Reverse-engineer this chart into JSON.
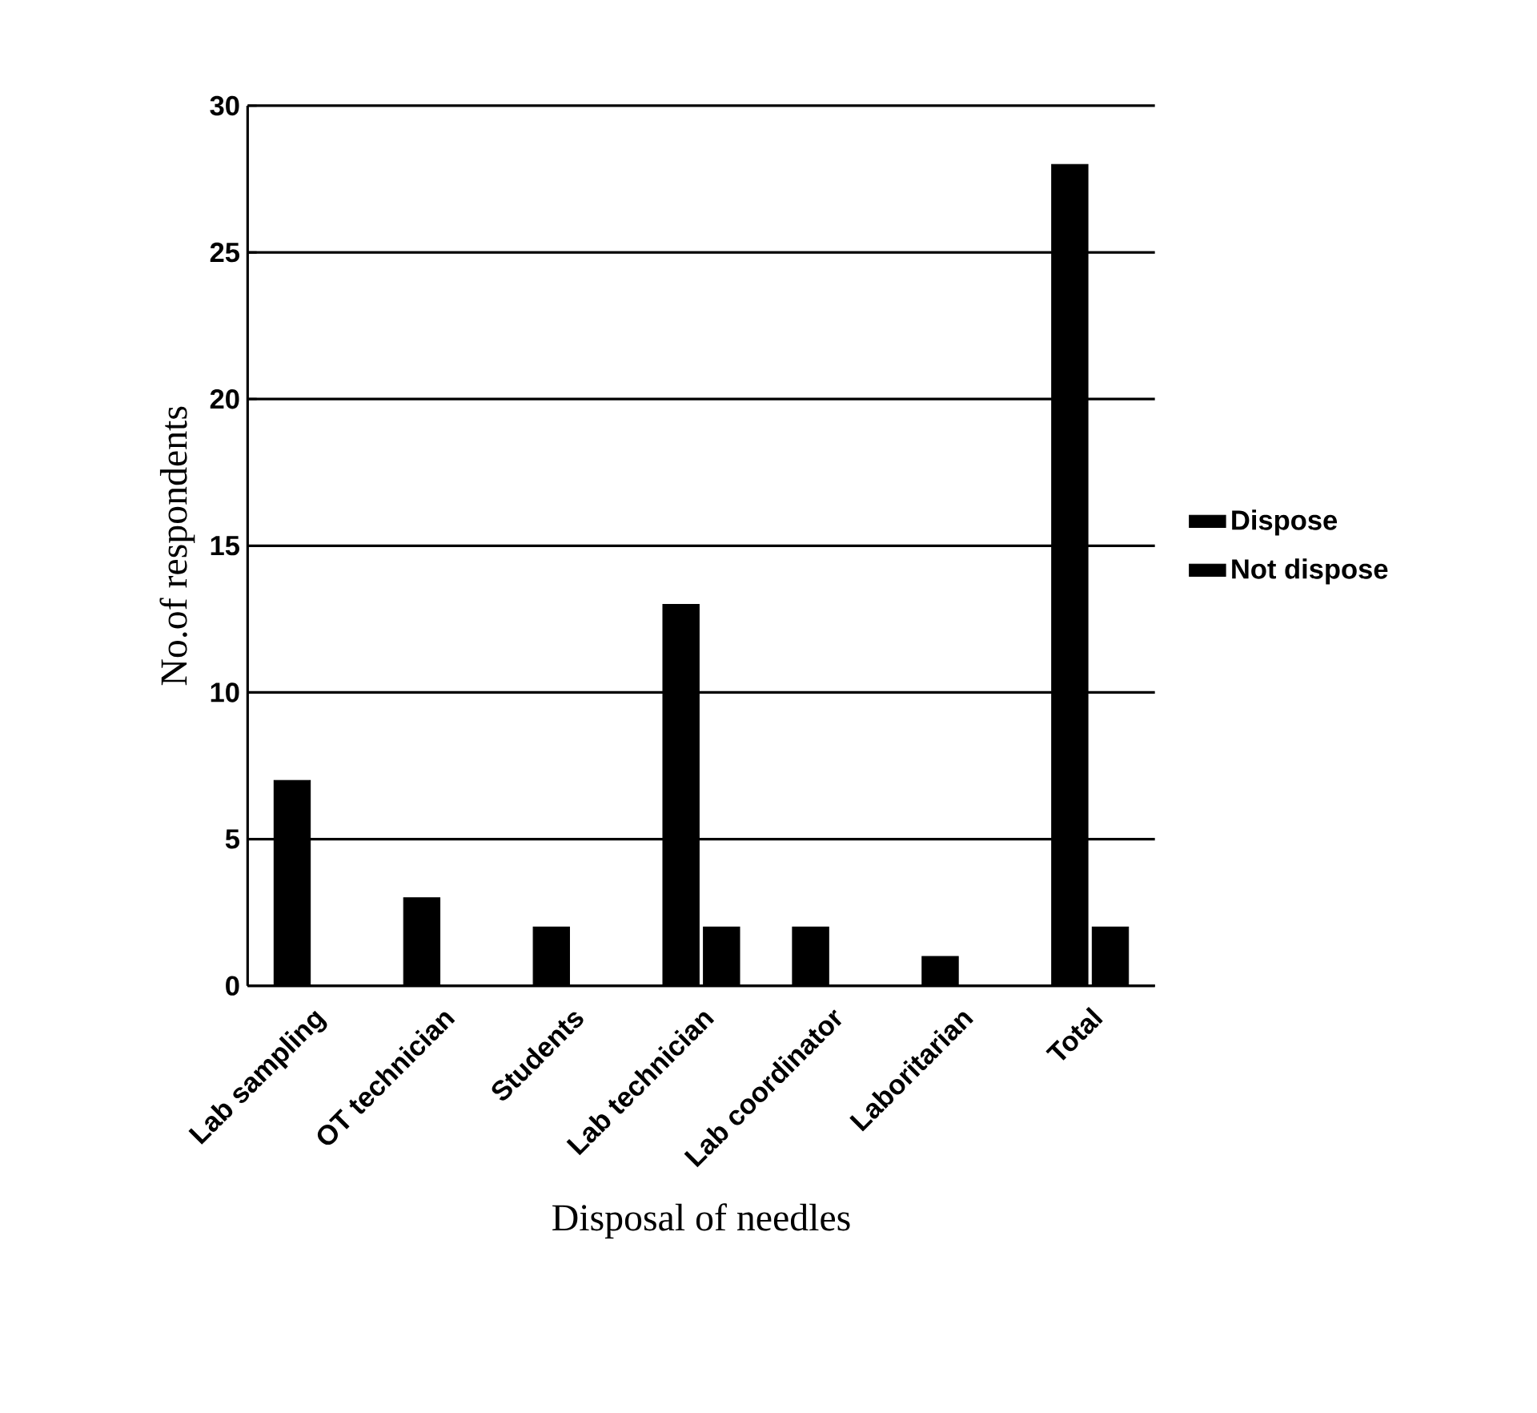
{
  "chart_data": {
    "type": "bar",
    "xlabel": "Disposal of needles",
    "ylabel": "No.of respondents",
    "categories": [
      "Lab sampling",
      "OT technician",
      "Students",
      "Lab  technician",
      "Lab coordinator",
      "Laboritarian",
      "Total"
    ],
    "series": [
      {
        "name": "Dispose",
        "color": "#000000",
        "values": [
          7,
          3,
          2,
          13,
          2,
          1,
          28
        ]
      },
      {
        "name": "Not dispose",
        "color": "#000000",
        "values": [
          0,
          0,
          0,
          2,
          0,
          0,
          2
        ]
      }
    ],
    "ylim": [
      0,
      30
    ],
    "yticks": [
      0,
      5,
      10,
      15,
      20,
      25,
      30
    ],
    "grid": "y",
    "legend": "right"
  }
}
